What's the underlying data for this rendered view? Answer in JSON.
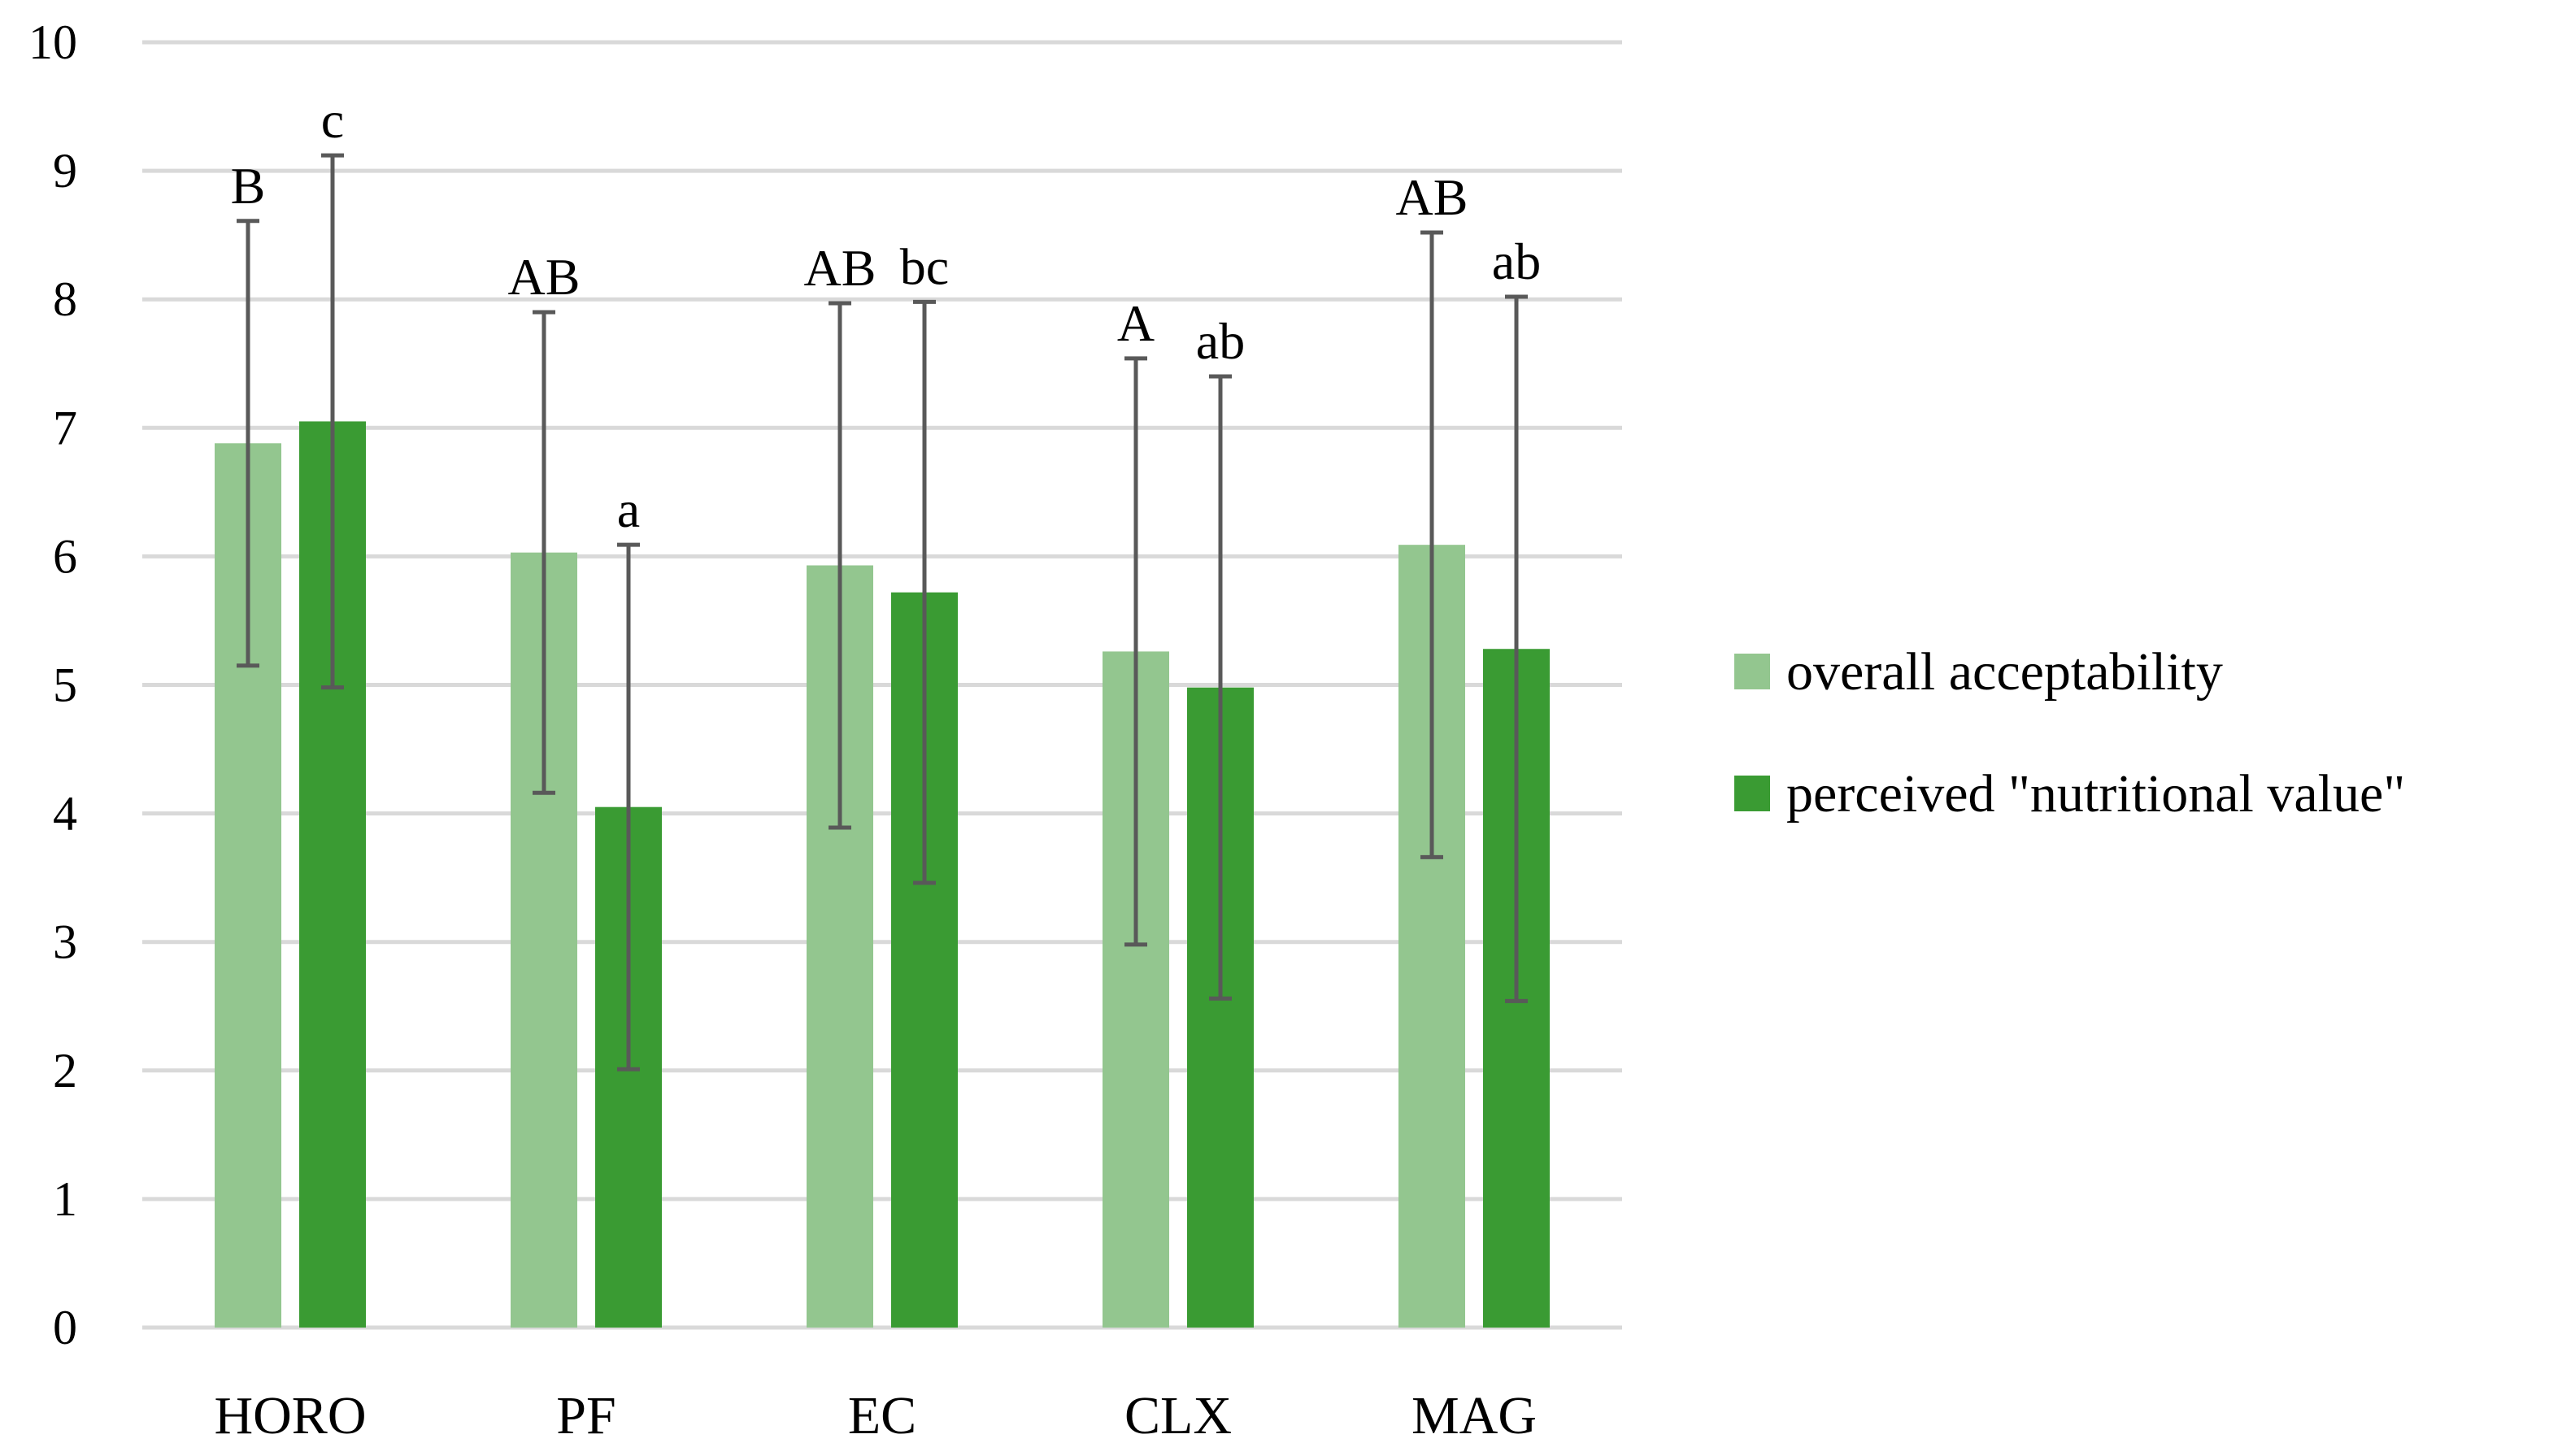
{
  "chart_data": {
    "type": "bar",
    "title": "",
    "xlabel": "",
    "ylabel": "",
    "ylim": [
      0,
      10
    ],
    "yticks": [
      "0",
      "1",
      "2",
      "3",
      "4",
      "5",
      "6",
      "7",
      "8",
      "9",
      "10"
    ],
    "grid": true,
    "legend_position": "right",
    "categories": [
      "HORO",
      "PF",
      "EC",
      "CLX",
      "MAG"
    ],
    "series": [
      {
        "name": "overall acceptability",
        "color": "#93c68f",
        "values": [
          6.88,
          6.03,
          5.93,
          5.26,
          6.09
        ],
        "error": [
          1.73,
          1.87,
          2.04,
          2.28,
          2.43
        ],
        "significance": [
          "B",
          "AB",
          "AB",
          "A",
          "AB"
        ]
      },
      {
        "name": "perceived \"nutritional value\"",
        "color": "#3a9b33",
        "values": [
          7.05,
          4.05,
          5.72,
          4.98,
          5.28
        ],
        "error": [
          2.07,
          2.04,
          2.26,
          2.42,
          2.74
        ],
        "significance": [
          "c",
          "a",
          "bc",
          "ab",
          "ab"
        ]
      }
    ]
  }
}
